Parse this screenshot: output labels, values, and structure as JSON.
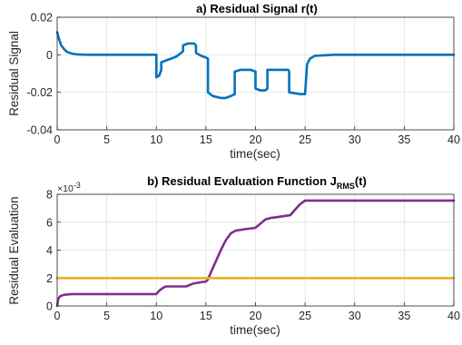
{
  "chart_data": [
    {
      "type": "line",
      "title": "a) Residual Signal r(t)",
      "xlabel": "time(sec)",
      "ylabel": "Residual Signal",
      "xlim": [
        0,
        40
      ],
      "ylim": [
        -0.04,
        0.02
      ],
      "xticks": [
        "0",
        "5",
        "10",
        "15",
        "20",
        "25",
        "30",
        "35",
        "40"
      ],
      "yticks": [
        "-0.04",
        "-0.02",
        "0",
        "0.02"
      ],
      "grid": true,
      "series": [
        {
          "color": "#0072BD",
          "x": [
            0,
            0.15,
            0.4,
            0.7,
            1.0,
            1.5,
            2.0,
            3.0,
            10.0,
            10.0,
            10.3,
            10.5,
            10.5,
            11.0,
            11.5,
            12.0,
            12.5,
            12.7,
            12.7,
            13.2,
            13.8,
            14.0,
            14.0,
            14.5,
            15.0,
            15.2,
            15.2,
            15.7,
            16.5,
            17.0,
            17.5,
            17.9,
            17.9,
            18.5,
            19.5,
            20.0,
            20.0,
            20.5,
            21.0,
            21.2,
            21.2,
            22.5,
            23.3,
            23.4,
            23.4,
            24.5,
            25.0,
            25.2,
            25.5,
            26.0,
            28.0,
            30.0,
            40.0
          ],
          "values": [
            0.012,
            0.009,
            0.005,
            0.003,
            0.0015,
            0.0006,
            0.0002,
            0.0,
            0.0,
            -0.012,
            -0.011,
            -0.008,
            -0.004,
            -0.003,
            -0.002,
            -0.001,
            0.001,
            0.002,
            0.005,
            0.006,
            0.006,
            0.005,
            0.001,
            -0.0005,
            -0.0015,
            -0.002,
            -0.02,
            -0.022,
            -0.023,
            -0.023,
            -0.022,
            -0.021,
            -0.009,
            -0.008,
            -0.008,
            -0.009,
            -0.018,
            -0.019,
            -0.019,
            -0.018,
            -0.008,
            -0.008,
            -0.008,
            -0.009,
            -0.02,
            -0.021,
            -0.021,
            -0.005,
            -0.002,
            -0.0005,
            0.0,
            0.0,
            0.0
          ]
        }
      ]
    },
    {
      "type": "line",
      "title": "b) Residual Evaluation Function J",
      "title_sub": "RMS",
      "title_tail": "(t)",
      "xlabel": "time(sec)",
      "ylabel": "Residual Evaluation",
      "y_exponent_base": "×10",
      "y_exponent_power": "-3",
      "xlim": [
        0,
        40
      ],
      "ylim": [
        0,
        8
      ],
      "xticks": [
        "0",
        "5",
        "10",
        "15",
        "20",
        "25",
        "30",
        "35",
        "40"
      ],
      "yticks": [
        "0",
        "2",
        "4",
        "6",
        "8"
      ],
      "grid": true,
      "series": [
        {
          "color": "#7E2F8E",
          "x": [
            0,
            0.1,
            0.3,
            0.7,
            1.5,
            3,
            5,
            8,
            10,
            10.3,
            10.8,
            11,
            12,
            13,
            13.7,
            14.5,
            15,
            15.2,
            15.5,
            16,
            16.5,
            17,
            17.5,
            18,
            19,
            20,
            20.5,
            21,
            21.5,
            22,
            23,
            23.5,
            24,
            24.5,
            25,
            27,
            30,
            35,
            40
          ],
          "values": [
            0,
            0.5,
            0.7,
            0.8,
            0.85,
            0.85,
            0.85,
            0.85,
            0.85,
            1.1,
            1.35,
            1.4,
            1.4,
            1.4,
            1.6,
            1.7,
            1.75,
            1.9,
            2.4,
            3.2,
            4.0,
            4.7,
            5.2,
            5.4,
            5.5,
            5.6,
            5.9,
            6.2,
            6.3,
            6.35,
            6.45,
            6.5,
            6.9,
            7.3,
            7.55,
            7.55,
            7.55,
            7.55,
            7.55
          ]
        },
        {
          "color": "#EDB120",
          "x": [
            0,
            40
          ],
          "values": [
            2,
            2
          ]
        }
      ]
    }
  ]
}
